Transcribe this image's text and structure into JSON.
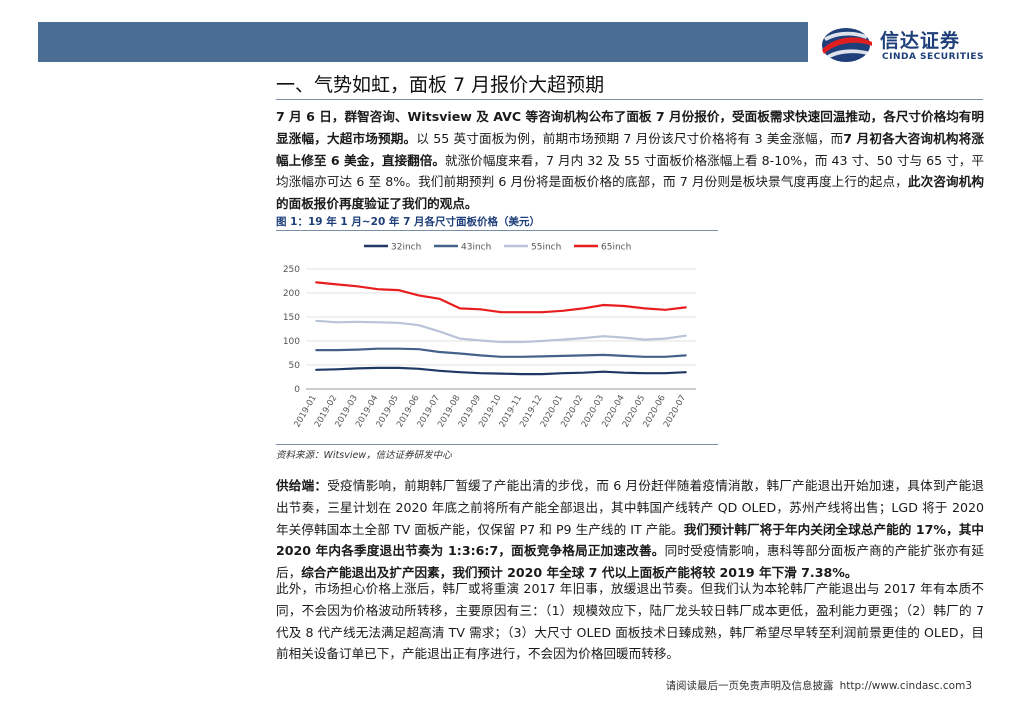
{
  "header": {
    "logo_cn": "信达证券",
    "logo_en": "CINDA SECURITIES"
  },
  "section_title": "一、气势如虹，面板 7 月报价大超预期",
  "paragraph1": {
    "bold_a": "7 月 6 日，群智咨询、Witsview 及 AVC 等咨询机构公布了面板 7 月份报价，受面板需求快速回温推动，各尺寸价格均有明显涨幅，大超市场预期。",
    "text_a": "以 55 英寸面板为例，前期市场预期 7 月份该尺寸价格将有 3 美金涨幅，而",
    "bold_b": "7 月初各大咨询机构将涨幅上修至 6 美金，直接翻倍。",
    "text_b": "就涨价幅度来看，7 月内 32 及 55 寸面板价格涨幅上看 8-10%，而 43 寸、50 寸与 65 寸，平均涨幅亦可达 6 至 8%。我们前期预判 6 月份将是面板价格的底部，而 7 月份则是板块景气度再度上行的起点，",
    "bold_c": "此次咨询机构的面板报价再度验证了我们的观点。"
  },
  "figure": {
    "title": "图 1：19 年 1 月~20 年 7 月各尺寸面板价格（美元）",
    "source": "资料来源：Witsview，信达证券研发中心"
  },
  "chart_data": {
    "type": "line",
    "x": [
      "2019-01",
      "2019-02",
      "2019-03",
      "2019-04",
      "2019-05",
      "2019-06",
      "2019-07",
      "2019-08",
      "2019-09",
      "2019-10",
      "2019-11",
      "2019-12",
      "2020-01",
      "2020-02",
      "2020-03",
      "2020-04",
      "2020-05",
      "2020-06",
      "2020-07"
    ],
    "series": [
      {
        "name": "32inch",
        "color": "#1f3864",
        "values": [
          40,
          41,
          43,
          44,
          44,
          42,
          38,
          35,
          33,
          32,
          31,
          31,
          33,
          34,
          36,
          34,
          33,
          33,
          35
        ]
      },
      {
        "name": "43inch",
        "color": "#44628a",
        "values": [
          81,
          81,
          82,
          84,
          84,
          83,
          77,
          74,
          70,
          67,
          67,
          68,
          69,
          70,
          71,
          69,
          67,
          67,
          70
        ]
      },
      {
        "name": "55inch",
        "color": "#b9c4d8",
        "values": [
          142,
          139,
          140,
          139,
          138,
          133,
          120,
          105,
          101,
          98,
          98,
          100,
          103,
          106,
          110,
          107,
          103,
          105,
          111
        ]
      },
      {
        "name": "65inch",
        "color": "#e81e1e",
        "values": [
          222,
          218,
          214,
          208,
          206,
          195,
          188,
          168,
          166,
          160,
          160,
          160,
          163,
          168,
          175,
          173,
          168,
          165,
          170
        ]
      }
    ],
    "yticks": [
      "250",
      "200",
      "150",
      "100",
      "50",
      "0"
    ],
    "ylim": [
      0,
      250
    ],
    "grid": true,
    "legend": "top-center"
  },
  "paragraph2": {
    "bold_lead": "供给端：",
    "text_a": "受疫情影响，前期韩厂暂缓了产能出清的步伐，而 6 月份赶伴随着疫情消散，韩厂产能退出开始加速，具体到产能退出节奏，三星计划在 2020 年底之前将所有产能全部退出，其中韩国产线转产 QD OLED，苏州产线将出售；LGD 将于 2020 年关停韩国本土全部 TV 面板产能，仅保留 P7 和 P9 生产线的 IT 产能。",
    "bold_a": "我们预计韩厂将于年内关闭全球总产能的 17%，其中 2020 年内各季度退出节奏为 1:3:6:7，面板竞争格局正加速改善。",
    "text_b": "同时受疫情影响，惠科等部分面板产商的产能扩张亦有延后，",
    "bold_b": "综合产能退出及扩产因素，我们预计 2020 年全球 7 代以上面板产能将较 2019 年下滑 7.38%。"
  },
  "paragraph3": "此外，市场担心价格上涨后，韩厂或将重演 2017 年旧事，放缓退出节奏。但我们认为本轮韩厂产能退出与 2017 年有本质不同，不会因为价格波动所转移，主要原因有三：（1）规模效应下，陆厂龙头较日韩厂成本更低，盈利能力更强；（2）韩厂的 7 代及 8 代产线无法满足超高清 TV 需求；（3）大尺寸 OLED 面板技术日臻成熟，韩厂希望尽早转至利润前景更佳的 OLED，目前相关设备订单已下，产能退出正有序进行，不会因为价格回暖而转移。",
  "footer": {
    "disclaimer": "请阅读最后一页免责声明及信息披露",
    "url": "http://www.cindasc.com3"
  }
}
